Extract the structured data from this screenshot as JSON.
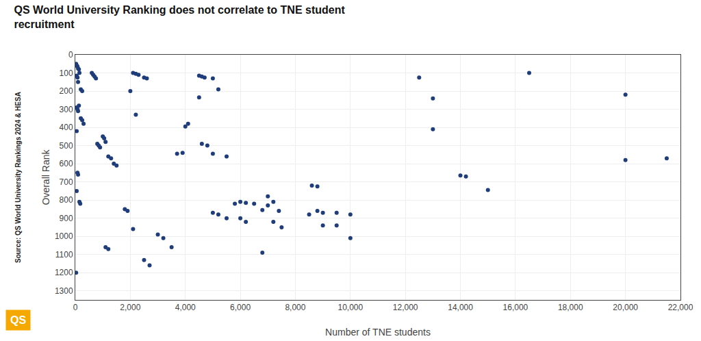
{
  "chart_data": {
    "type": "scatter",
    "title": "QS World University Ranking does not correlate to TNE student\nrecruitment",
    "x_label": "Number of TNE students",
    "y_label": "Overall Rank",
    "annotations": [
      {
        "text": "Source: QS World University Rankings 2024 & HESA"
      },
      {
        "text": "QS",
        "color": "#f5a800"
      }
    ],
    "color": "#1f3d7a",
    "marker": "circle",
    "grid": true,
    "xlim": [
      0,
      22000
    ],
    "ylim": [
      1350,
      0
    ],
    "xticks": [
      0,
      {
        "value": 2000,
        "label": "2,000"
      },
      {
        "value": 4000,
        "label": "4,000"
      },
      {
        "value": 6000,
        "label": "6,000"
      },
      {
        "value": 8000,
        "label": "8,000"
      },
      {
        "value": 10000,
        "label": "10,000"
      },
      {
        "value": 12000,
        "label": "12,000"
      },
      {
        "value": 14000,
        "label": "14,000"
      },
      {
        "value": 16000,
        "label": "16,000"
      },
      {
        "value": 18000,
        "label": "18,000"
      },
      {
        "value": 20000,
        "label": "20,000"
      },
      {
        "value": 22000,
        "label": "22,000"
      }
    ],
    "yticks": [
      0,
      100,
      200,
      300,
      400,
      500,
      600,
      700,
      800,
      900,
      1000,
      1100,
      1200,
      1300
    ],
    "x": [
      30,
      60,
      80,
      100,
      130,
      150,
      50,
      80,
      100,
      200,
      250,
      50,
      80,
      100,
      130,
      200,
      250,
      300,
      50,
      80,
      100,
      50,
      150,
      180,
      30,
      600,
      650,
      700,
      750,
      800,
      850,
      900,
      1000,
      1050,
      1100,
      1200,
      1300,
      1400,
      1500,
      1100,
      1200,
      1800,
      1900,
      2000,
      2100,
      2200,
      2300,
      2500,
      2600,
      2100,
      2500,
      2700,
      2200,
      3000,
      3200,
      3500,
      3700,
      3900,
      4000,
      4100,
      4500,
      4600,
      4700,
      5000,
      5200,
      4500,
      4600,
      4800,
      5000,
      5500,
      5000,
      5200,
      5500,
      5800,
      6000,
      6200,
      6500,
      6000,
      6200,
      6800,
      7000,
      7200,
      7000,
      6800,
      7400,
      7200,
      7500,
      8600,
      8800,
      8500,
      8800,
      9000,
      9000,
      9500,
      9500,
      10000,
      10000,
      12500,
      13000,
      13000,
      14000,
      14200,
      15000,
      16500,
      20000,
      20000,
      21500
    ],
    "values": [
      50,
      60,
      65,
      75,
      80,
      100,
      115,
      125,
      150,
      190,
      200,
      290,
      300,
      310,
      280,
      350,
      360,
      380,
      420,
      650,
      660,
      750,
      810,
      820,
      1200,
      100,
      110,
      120,
      130,
      490,
      500,
      510,
      450,
      460,
      480,
      560,
      570,
      600,
      610,
      1060,
      1070,
      850,
      860,
      200,
      100,
      105,
      110,
      125,
      130,
      960,
      1130,
      1160,
      330,
      990,
      1010,
      1060,
      545,
      540,
      395,
      380,
      115,
      120,
      125,
      130,
      190,
      235,
      490,
      500,
      545,
      560,
      870,
      880,
      900,
      820,
      810,
      815,
      820,
      900,
      920,
      1090,
      780,
      810,
      830,
      855,
      860,
      920,
      950,
      720,
      725,
      880,
      860,
      870,
      940,
      940,
      870,
      880,
      1010,
      125,
      240,
      410,
      665,
      670,
      745,
      100,
      220,
      580,
      570
    ]
  }
}
